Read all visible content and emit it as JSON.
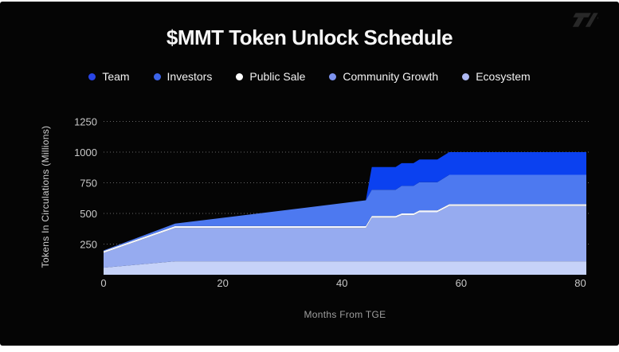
{
  "page": {
    "background": "#050505",
    "brand_logo": "tp-slash-mark"
  },
  "chart_data": {
    "type": "area",
    "stacked": true,
    "title": "$MMT Token Unlock Schedule",
    "xlabel": "Months From TGE",
    "ylabel": "Tokens In Circulations (Millions)",
    "xlim": [
      0,
      81
    ],
    "ylim": [
      0,
      1250
    ],
    "x_ticks": [
      0,
      20,
      40,
      60,
      80
    ],
    "y_ticks": [
      250,
      500,
      750,
      1000,
      1250
    ],
    "grid": "dotted-horizontal",
    "legend_position": "top",
    "x": [
      0,
      12,
      44,
      45,
      49,
      50,
      52,
      53,
      56,
      58,
      81
    ],
    "series_bottom_to_top": [
      {
        "name": "Ecosystem",
        "color": "#c6d2f8",
        "dot_color": "#aeb9f3",
        "values": [
          58,
          110,
          110,
          110,
          110,
          110,
          110,
          110,
          110,
          110,
          110
        ]
      },
      {
        "name": "Community Growth",
        "color": "#96abf0",
        "dot_color": "#7d93ee",
        "values": [
          120,
          272,
          272,
          355,
          355,
          375,
          375,
          400,
          400,
          450,
          450
        ]
      },
      {
        "name": "Public Sale",
        "color": "#f4f6fb",
        "dot_color": "#ffffff",
        "values": [
          15,
          15,
          15,
          15,
          15,
          15,
          15,
          15,
          15,
          15,
          15
        ]
      },
      {
        "name": "Investors",
        "color": "#4d79f0",
        "dot_color": "#3c64ea",
        "values": [
          5,
          20,
          210,
          213,
          213,
          225,
          225,
          230,
          230,
          240,
          240
        ]
      },
      {
        "name": "Team",
        "color": "#0b41f0",
        "dot_color": "#2945e6",
        "values": [
          0,
          0,
          0,
          185,
          185,
          185,
          185,
          185,
          185,
          185,
          185
        ]
      }
    ],
    "legend_order": [
      "Team",
      "Investors",
      "Public Sale",
      "Community Growth",
      "Ecosystem"
    ],
    "total_supply_millions": 1000
  }
}
